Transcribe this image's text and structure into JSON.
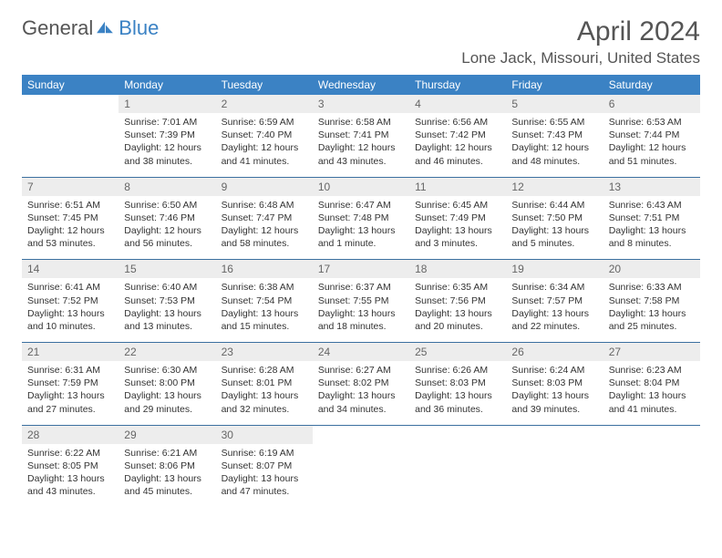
{
  "brand": {
    "part1": "General",
    "part2": "Blue"
  },
  "title": "April 2024",
  "location": "Lone Jack, Missouri, United States",
  "day_headers": [
    "Sunday",
    "Monday",
    "Tuesday",
    "Wednesday",
    "Thursday",
    "Friday",
    "Saturday"
  ],
  "colors": {
    "header_bg": "#3b82c4",
    "header_text": "#ffffff",
    "stripe_bg": "#ededed",
    "rule": "#3b70a0"
  },
  "weeks": [
    [
      null,
      {
        "n": "1",
        "sr": "Sunrise: 7:01 AM",
        "ss": "Sunset: 7:39 PM",
        "dl1": "Daylight: 12 hours",
        "dl2": "and 38 minutes."
      },
      {
        "n": "2",
        "sr": "Sunrise: 6:59 AM",
        "ss": "Sunset: 7:40 PM",
        "dl1": "Daylight: 12 hours",
        "dl2": "and 41 minutes."
      },
      {
        "n": "3",
        "sr": "Sunrise: 6:58 AM",
        "ss": "Sunset: 7:41 PM",
        "dl1": "Daylight: 12 hours",
        "dl2": "and 43 minutes."
      },
      {
        "n": "4",
        "sr": "Sunrise: 6:56 AM",
        "ss": "Sunset: 7:42 PM",
        "dl1": "Daylight: 12 hours",
        "dl2": "and 46 minutes."
      },
      {
        "n": "5",
        "sr": "Sunrise: 6:55 AM",
        "ss": "Sunset: 7:43 PM",
        "dl1": "Daylight: 12 hours",
        "dl2": "and 48 minutes."
      },
      {
        "n": "6",
        "sr": "Sunrise: 6:53 AM",
        "ss": "Sunset: 7:44 PM",
        "dl1": "Daylight: 12 hours",
        "dl2": "and 51 minutes."
      }
    ],
    [
      {
        "n": "7",
        "sr": "Sunrise: 6:51 AM",
        "ss": "Sunset: 7:45 PM",
        "dl1": "Daylight: 12 hours",
        "dl2": "and 53 minutes."
      },
      {
        "n": "8",
        "sr": "Sunrise: 6:50 AM",
        "ss": "Sunset: 7:46 PM",
        "dl1": "Daylight: 12 hours",
        "dl2": "and 56 minutes."
      },
      {
        "n": "9",
        "sr": "Sunrise: 6:48 AM",
        "ss": "Sunset: 7:47 PM",
        "dl1": "Daylight: 12 hours",
        "dl2": "and 58 minutes."
      },
      {
        "n": "10",
        "sr": "Sunrise: 6:47 AM",
        "ss": "Sunset: 7:48 PM",
        "dl1": "Daylight: 13 hours",
        "dl2": "and 1 minute."
      },
      {
        "n": "11",
        "sr": "Sunrise: 6:45 AM",
        "ss": "Sunset: 7:49 PM",
        "dl1": "Daylight: 13 hours",
        "dl2": "and 3 minutes."
      },
      {
        "n": "12",
        "sr": "Sunrise: 6:44 AM",
        "ss": "Sunset: 7:50 PM",
        "dl1": "Daylight: 13 hours",
        "dl2": "and 5 minutes."
      },
      {
        "n": "13",
        "sr": "Sunrise: 6:43 AM",
        "ss": "Sunset: 7:51 PM",
        "dl1": "Daylight: 13 hours",
        "dl2": "and 8 minutes."
      }
    ],
    [
      {
        "n": "14",
        "sr": "Sunrise: 6:41 AM",
        "ss": "Sunset: 7:52 PM",
        "dl1": "Daylight: 13 hours",
        "dl2": "and 10 minutes."
      },
      {
        "n": "15",
        "sr": "Sunrise: 6:40 AM",
        "ss": "Sunset: 7:53 PM",
        "dl1": "Daylight: 13 hours",
        "dl2": "and 13 minutes."
      },
      {
        "n": "16",
        "sr": "Sunrise: 6:38 AM",
        "ss": "Sunset: 7:54 PM",
        "dl1": "Daylight: 13 hours",
        "dl2": "and 15 minutes."
      },
      {
        "n": "17",
        "sr": "Sunrise: 6:37 AM",
        "ss": "Sunset: 7:55 PM",
        "dl1": "Daylight: 13 hours",
        "dl2": "and 18 minutes."
      },
      {
        "n": "18",
        "sr": "Sunrise: 6:35 AM",
        "ss": "Sunset: 7:56 PM",
        "dl1": "Daylight: 13 hours",
        "dl2": "and 20 minutes."
      },
      {
        "n": "19",
        "sr": "Sunrise: 6:34 AM",
        "ss": "Sunset: 7:57 PM",
        "dl1": "Daylight: 13 hours",
        "dl2": "and 22 minutes."
      },
      {
        "n": "20",
        "sr": "Sunrise: 6:33 AM",
        "ss": "Sunset: 7:58 PM",
        "dl1": "Daylight: 13 hours",
        "dl2": "and 25 minutes."
      }
    ],
    [
      {
        "n": "21",
        "sr": "Sunrise: 6:31 AM",
        "ss": "Sunset: 7:59 PM",
        "dl1": "Daylight: 13 hours",
        "dl2": "and 27 minutes."
      },
      {
        "n": "22",
        "sr": "Sunrise: 6:30 AM",
        "ss": "Sunset: 8:00 PM",
        "dl1": "Daylight: 13 hours",
        "dl2": "and 29 minutes."
      },
      {
        "n": "23",
        "sr": "Sunrise: 6:28 AM",
        "ss": "Sunset: 8:01 PM",
        "dl1": "Daylight: 13 hours",
        "dl2": "and 32 minutes."
      },
      {
        "n": "24",
        "sr": "Sunrise: 6:27 AM",
        "ss": "Sunset: 8:02 PM",
        "dl1": "Daylight: 13 hours",
        "dl2": "and 34 minutes."
      },
      {
        "n": "25",
        "sr": "Sunrise: 6:26 AM",
        "ss": "Sunset: 8:03 PM",
        "dl1": "Daylight: 13 hours",
        "dl2": "and 36 minutes."
      },
      {
        "n": "26",
        "sr": "Sunrise: 6:24 AM",
        "ss": "Sunset: 8:03 PM",
        "dl1": "Daylight: 13 hours",
        "dl2": "and 39 minutes."
      },
      {
        "n": "27",
        "sr": "Sunrise: 6:23 AM",
        "ss": "Sunset: 8:04 PM",
        "dl1": "Daylight: 13 hours",
        "dl2": "and 41 minutes."
      }
    ],
    [
      {
        "n": "28",
        "sr": "Sunrise: 6:22 AM",
        "ss": "Sunset: 8:05 PM",
        "dl1": "Daylight: 13 hours",
        "dl2": "and 43 minutes."
      },
      {
        "n": "29",
        "sr": "Sunrise: 6:21 AM",
        "ss": "Sunset: 8:06 PM",
        "dl1": "Daylight: 13 hours",
        "dl2": "and 45 minutes."
      },
      {
        "n": "30",
        "sr": "Sunrise: 6:19 AM",
        "ss": "Sunset: 8:07 PM",
        "dl1": "Daylight: 13 hours",
        "dl2": "and 47 minutes."
      },
      null,
      null,
      null,
      null
    ]
  ]
}
